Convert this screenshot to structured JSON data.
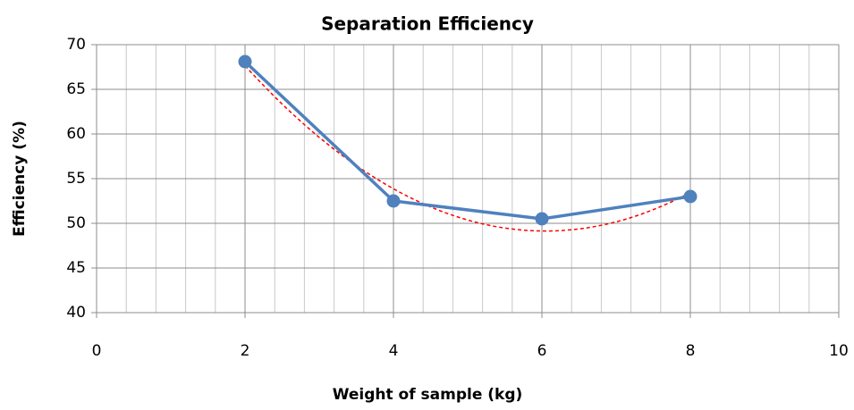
{
  "chart_data": {
    "type": "line",
    "title": "Separation Efficiency",
    "x_label": "Weight of sample (kg)",
    "y_label": "Efficiency (%)",
    "x": [
      2,
      4,
      6,
      8
    ],
    "series": [
      {
        "name": "Efficiency",
        "color": "#4f81bd",
        "values": [
          68.1,
          52.5,
          50.5,
          53.0
        ],
        "marker": "circle"
      }
    ],
    "trendline": {
      "kind": "polynomial",
      "order": 2,
      "color": "#ff0000",
      "dashed": true
    },
    "xlim": [
      0,
      10
    ],
    "xticks": [
      0,
      2,
      4,
      6,
      8,
      10
    ],
    "x_minor_divisions": 5,
    "ylim": [
      40,
      70
    ],
    "yticks": [
      40,
      45,
      50,
      55,
      60,
      65,
      70
    ],
    "grid": true,
    "legend": false
  }
}
